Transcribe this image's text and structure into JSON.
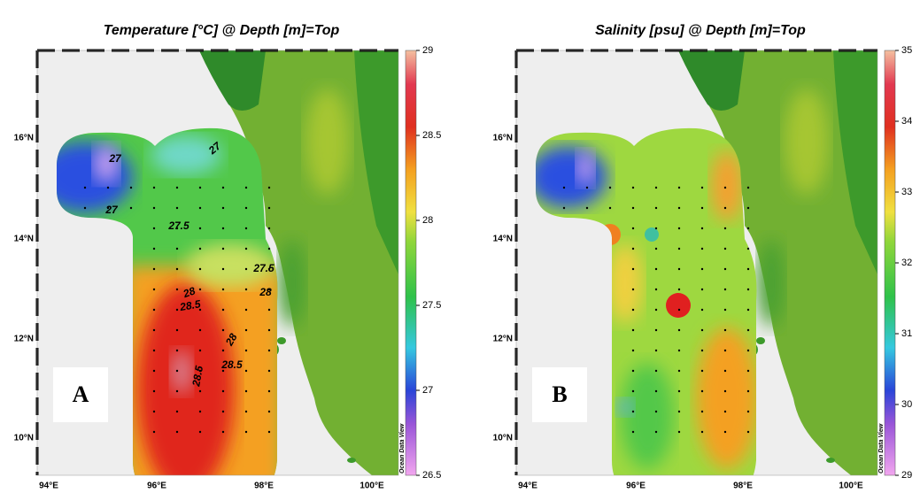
{
  "panels": [
    {
      "title": "Temperature [°C] @ Depth [m]=Top",
      "panel_label": "A",
      "watermark": "Ocean Data View",
      "x_ticks": [
        "94°E",
        "96°E",
        "98°E",
        "100°E"
      ],
      "y_ticks": [
        "16°N",
        "14°N",
        "12°N",
        "10°N"
      ],
      "colorbar": {
        "min": 26.5,
        "max": 29,
        "ticks": [
          26.5,
          27,
          27.5,
          28,
          28.5,
          29
        ]
      },
      "contour_labels": [
        "27",
        "27",
        "27",
        "27.5",
        "27.5",
        "28",
        "28.5",
        "28",
        "28",
        "28.5",
        "28.5"
      ]
    },
    {
      "title": "Salinity [psu] @ Depth [m]=Top",
      "panel_label": "B",
      "watermark": "Ocean Data View",
      "x_ticks": [
        "94°E",
        "96°E",
        "98°E",
        "100°E"
      ],
      "y_ticks": [
        "16°N",
        "14°N",
        "12°N",
        "10°N"
      ],
      "colorbar": {
        "min": 29,
        "max": 35,
        "ticks": [
          29,
          30,
          31,
          32,
          33,
          34,
          35
        ]
      }
    }
  ]
}
